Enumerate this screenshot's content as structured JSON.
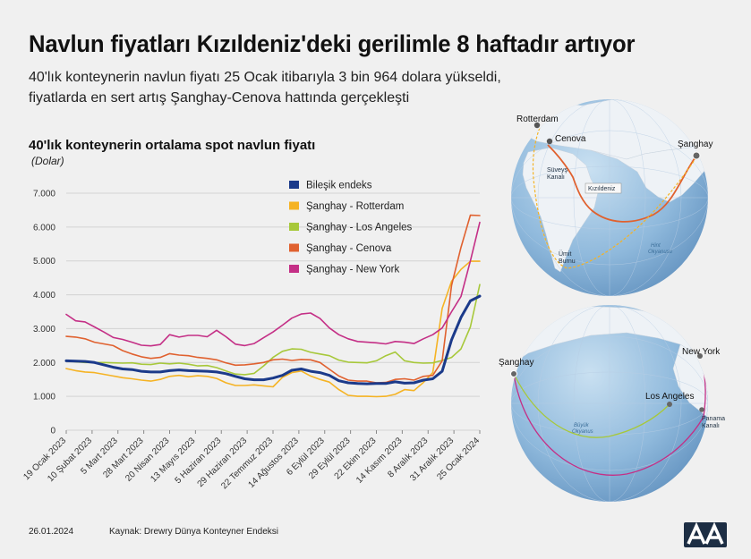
{
  "header": {
    "title": "Navlun fiyatları Kızıldeniz'deki gerilimle 8 haftadır artıyor",
    "subtitle_line1": "40'lık konteynerin navlun fiyatı 25 Ocak itibarıyla 3 bin 964 dolara yükseldi,",
    "subtitle_line2": "fiyatlarda en sert artış Şanghay-Cenova hattında gerçekleşti"
  },
  "chart_data": {
    "type": "line",
    "title": "40'lık konteynerin ortalama spot navlun fiyatı",
    "unit": "(Dolar)",
    "ylim": [
      0,
      7000
    ],
    "yticks": [
      "0",
      "1.000",
      "2.000",
      "3.000",
      "4.000",
      "5.000",
      "6.000",
      "7.000"
    ],
    "xticks": [
      "19 Ocak 2023",
      "10 Şubat 2023",
      "5 Mart 2023",
      "28 Mart 2023",
      "20 Nisan 2023",
      "13 Mayıs 2023",
      "5 Haziran 2023",
      "29 Haziran 2023",
      "22 Temmuz 2023",
      "14 Ağustos 2023",
      "6 Eylül 2023",
      "29 Eylül 2023",
      "22 Ekim 2023",
      "14 Kasım 2023",
      "8 Aralık 2023",
      "31 Aralık 2023",
      "25 Ocak 2024"
    ],
    "x_range": [
      "2023-01-19",
      "2024-01-25"
    ],
    "grid": "horizontal",
    "legend_position": "top-right",
    "series": [
      {
        "name": "Bileşik endeks",
        "color": "#1b3a8a",
        "values": [
          2050,
          2040,
          2030,
          2000,
          1930,
          1860,
          1810,
          1790,
          1740,
          1720,
          1720,
          1760,
          1780,
          1760,
          1750,
          1740,
          1720,
          1670,
          1590,
          1520,
          1490,
          1490,
          1540,
          1620,
          1770,
          1810,
          1740,
          1700,
          1620,
          1460,
          1400,
          1380,
          1370,
          1380,
          1380,
          1430,
          1390,
          1400,
          1480,
          1520,
          1740,
          2670,
          3330,
          3820,
          3960
        ]
      },
      {
        "name": "Şanghay - Rotterdam",
        "color": "#f5b324",
        "values": [
          1820,
          1760,
          1720,
          1700,
          1650,
          1600,
          1550,
          1520,
          1480,
          1450,
          1500,
          1590,
          1620,
          1580,
          1610,
          1590,
          1530,
          1400,
          1320,
          1320,
          1340,
          1310,
          1280,
          1560,
          1700,
          1750,
          1600,
          1500,
          1420,
          1200,
          1030,
          1000,
          1000,
          990,
          1000,
          1060,
          1200,
          1170,
          1410,
          1700,
          3600,
          4400,
          4750,
          4990,
          4990
        ]
      },
      {
        "name": "Şanghay - Los Angeles",
        "color": "#a7c83a",
        "values": [
          2050,
          2020,
          2000,
          2000,
          2000,
          1990,
          1980,
          1990,
          1950,
          1940,
          1980,
          1960,
          1980,
          1950,
          1900,
          1910,
          1850,
          1750,
          1660,
          1640,
          1680,
          1900,
          2150,
          2330,
          2400,
          2390,
          2300,
          2250,
          2200,
          2070,
          2010,
          2000,
          1990,
          2050,
          2200,
          2310,
          2050,
          2000,
          1980,
          1990,
          2060,
          2150,
          2400,
          3050,
          4300
        ]
      },
      {
        "name": "Şanghay  - Cenova",
        "color": "#e0612f",
        "values": [
          2770,
          2750,
          2700,
          2600,
          2550,
          2500,
          2350,
          2250,
          2170,
          2120,
          2150,
          2260,
          2220,
          2200,
          2150,
          2120,
          2080,
          1990,
          1920,
          1930,
          1960,
          2000,
          2080,
          2100,
          2060,
          2090,
          2080,
          2000,
          1800,
          1600,
          1480,
          1450,
          1450,
          1400,
          1410,
          1500,
          1520,
          1480,
          1590,
          1620,
          2050,
          4280,
          5400,
          6350,
          6340
        ]
      },
      {
        "name": "Şanghay - New York",
        "color": "#c42f86",
        "values": [
          3420,
          3230,
          3200,
          3050,
          2900,
          2740,
          2680,
          2600,
          2510,
          2490,
          2530,
          2820,
          2750,
          2800,
          2800,
          2760,
          2950,
          2760,
          2540,
          2500,
          2560,
          2730,
          2900,
          3100,
          3310,
          3430,
          3460,
          3300,
          3020,
          2820,
          2700,
          2620,
          2600,
          2580,
          2550,
          2620,
          2600,
          2560,
          2700,
          2820,
          3020,
          3500,
          3950,
          5000,
          6140
        ]
      }
    ]
  },
  "maps": {
    "top": {
      "rotterdam": "Rotterdam",
      "cenova": "Cenova",
      "sanghay": "Şanghay",
      "suveys": "Süveyş",
      "kanali": "Kanalı",
      "kizildeniz": "Kızıldeniz",
      "umit": "Ümit",
      "burnu": "Burnu",
      "hint": "Hint",
      "okyanusu": "Okyanusu"
    },
    "bottom": {
      "sanghay": "Şanghay",
      "new_york": "New York",
      "los_angeles": "Los Angeles",
      "panama": "Panama",
      "kanali": "Kanalı",
      "buyuk": "Büyük",
      "okyanus": "Okyanus"
    }
  },
  "footer": {
    "date": "26.01.2024",
    "source": "Kaynak: Drewry Dünya Konteyner Endeksi",
    "logo_text": "AA"
  }
}
